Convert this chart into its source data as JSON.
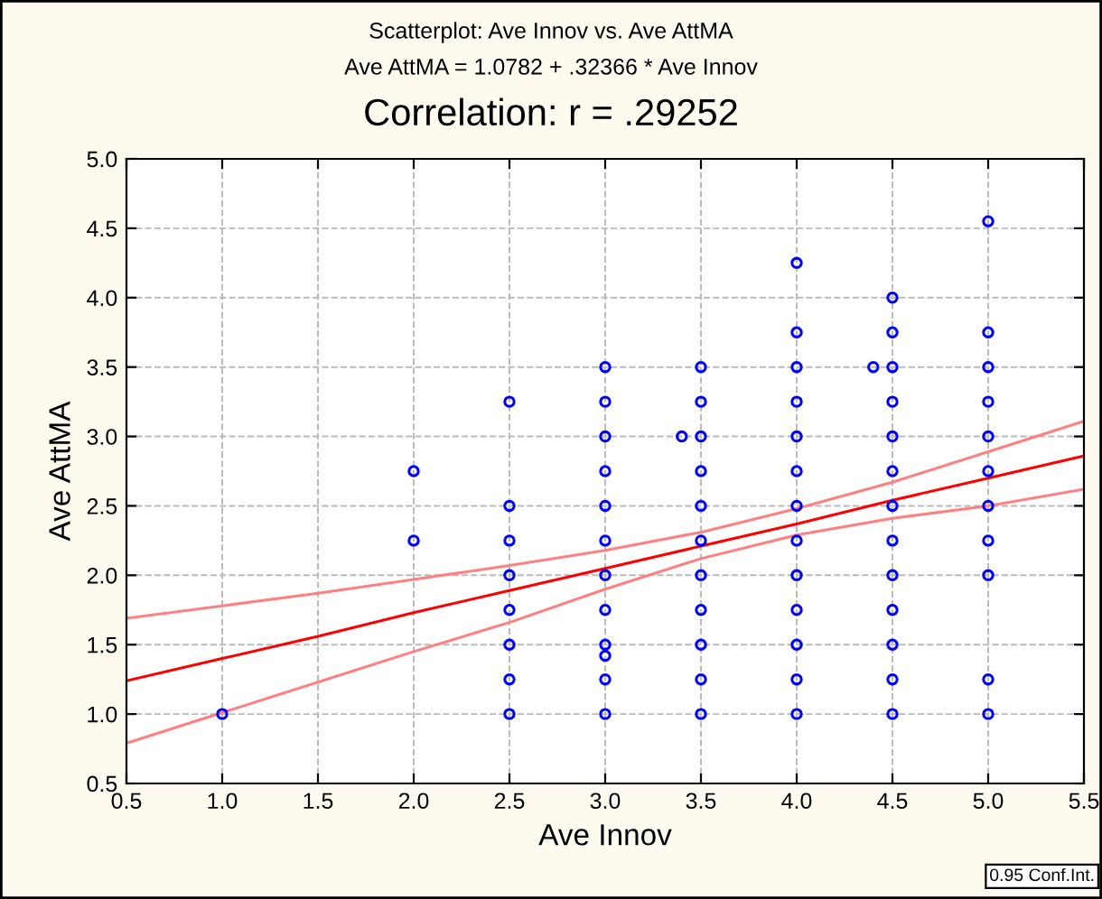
{
  "chart_data": {
    "type": "scatter",
    "title": "Scatterplot: Ave Innov vs. Ave AttMA",
    "subtitle": "Ave AttMA = 1.0782 + .32366 * Ave Innov",
    "annotations": [
      "Correlation: r = .29252",
      "0.95 Conf.Int."
    ],
    "xlabel": "Ave Innov",
    "ylabel": "Ave AttMA",
    "xlim": [
      0.5,
      5.5
    ],
    "xticks": [
      {
        "value": 0.5,
        "label": "0.5"
      },
      {
        "value": 1,
        "label": "1.0"
      },
      {
        "value": 1.5,
        "label": "1.5"
      },
      {
        "value": 2,
        "label": "2.0"
      },
      {
        "value": 2.5,
        "label": "2.5"
      },
      {
        "value": 3,
        "label": "3.0"
      },
      {
        "value": 3.5,
        "label": "3.5"
      },
      {
        "value": 4,
        "label": "4.0"
      },
      {
        "value": 4.5,
        "label": "4.5"
      },
      {
        "value": 5,
        "label": "5.0"
      },
      {
        "value": 5.5,
        "label": "5.5"
      }
    ],
    "ylim": [
      0.5,
      5.0
    ],
    "yticks": [
      {
        "value": 0.5,
        "label": "0.5"
      },
      {
        "value": 1,
        "label": "1.0"
      },
      {
        "value": 1.5,
        "label": "1.5"
      },
      {
        "value": 2,
        "label": "2.0"
      },
      {
        "value": 2.5,
        "label": "2.5"
      },
      {
        "value": 3,
        "label": "3.0"
      },
      {
        "value": 3.5,
        "label": "3.5"
      },
      {
        "value": 4,
        "label": "4.0"
      },
      {
        "value": 4.5,
        "label": "4.5"
      },
      {
        "value": 5,
        "label": "5.0"
      }
    ],
    "grid": true,
    "marker": "circle",
    "series": [
      {
        "color": "#0000ff",
        "x": [
          1,
          2,
          2,
          2.5,
          2.5,
          2.5,
          2.5,
          2.5,
          2.5,
          2.5,
          2.5,
          3,
          3,
          3,
          3,
          3,
          3,
          3,
          3,
          3,
          3,
          3,
          3,
          3.4,
          3.5,
          3.5,
          3.5,
          3.5,
          3.5,
          3.5,
          3.5,
          3.5,
          3.5,
          3.5,
          3.5,
          4,
          4,
          4,
          4,
          4,
          4,
          4,
          4,
          4,
          4,
          4,
          4,
          4,
          4.4,
          4.5,
          4.5,
          4.5,
          4.5,
          4.5,
          4.5,
          4.5,
          4.5,
          4.5,
          4.5,
          4.5,
          4.5,
          4.5,
          5,
          5,
          5,
          5,
          5,
          5,
          5,
          5,
          5,
          5,
          5
        ],
        "values": [
          1.0,
          2.75,
          2.25,
          3.25,
          2.5,
          2.25,
          2.0,
          1.75,
          1.5,
          1.25,
          1.0,
          3.5,
          3.25,
          3.0,
          2.75,
          2.5,
          2.25,
          2.0,
          1.75,
          1.5,
          1.42,
          1.25,
          1.0,
          3.0,
          3.5,
          3.25,
          3.0,
          2.75,
          2.5,
          2.25,
          2.0,
          1.75,
          1.5,
          1.25,
          1.0,
          4.25,
          3.75,
          3.5,
          3.25,
          3.0,
          2.75,
          2.5,
          2.25,
          2.0,
          1.75,
          1.5,
          1.25,
          1.0,
          3.5,
          4.0,
          3.75,
          3.5,
          3.25,
          3.0,
          2.75,
          2.5,
          2.25,
          2.0,
          1.75,
          1.5,
          1.25,
          1.0,
          4.55,
          3.75,
          3.5,
          3.25,
          3.0,
          2.75,
          2.5,
          2.25,
          2.0,
          1.25,
          1.0
        ]
      },
      {
        "type": "line",
        "color": "#ff0000",
        "marker": "none",
        "x": [
          0.5,
          1,
          1.5,
          2,
          2.5,
          3,
          3.5,
          4,
          4.5,
          5,
          5.5
        ],
        "values": [
          1.24,
          1.4,
          1.56,
          1.73,
          1.89,
          2.05,
          2.21,
          2.37,
          2.54,
          2.7,
          2.86
        ]
      },
      {
        "type": "line",
        "color": "#ff8080",
        "marker": "none",
        "x": [
          0.5,
          1,
          1.5,
          2,
          2.5,
          3,
          3.5,
          4,
          4.5,
          5,
          5.5
        ],
        "values": [
          0.79,
          1.01,
          1.23,
          1.45,
          1.66,
          1.9,
          2.12,
          2.29,
          2.41,
          2.5,
          2.62
        ]
      },
      {
        "type": "line",
        "color": "#ff8080",
        "marker": "none",
        "x": [
          0.5,
          1,
          1.5,
          2,
          2.5,
          3,
          3.5,
          4,
          4.5,
          5,
          5.5
        ],
        "values": [
          1.69,
          1.78,
          1.87,
          1.97,
          2.07,
          2.18,
          2.31,
          2.48,
          2.67,
          2.89,
          3.11
        ]
      }
    ]
  }
}
